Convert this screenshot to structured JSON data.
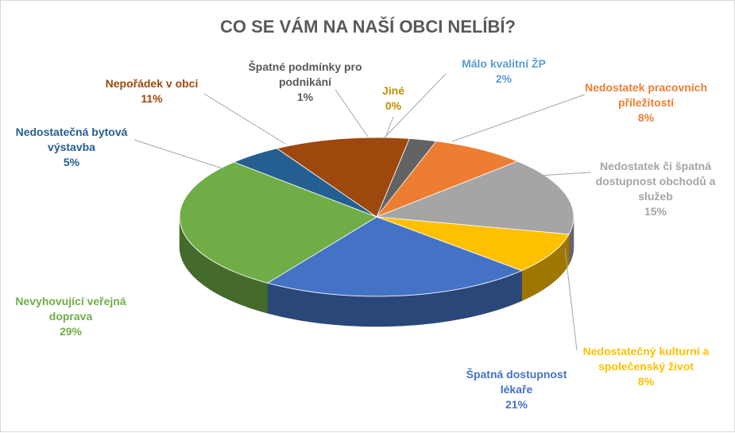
{
  "chart_data": {
    "type": "pie",
    "title": "CO SE VÁM NA NAŠÍ OBCI NELÍBÍ?",
    "slices": [
      {
        "label_lines": [
          "Jiné"
        ],
        "pct_label": "0%",
        "value": 0,
        "color": "#bf9000"
      },
      {
        "label_lines": [
          "Málo kvalitní ŽP"
        ],
        "pct_label": "2%",
        "value": 2,
        "color": "#5b9bd5"
      },
      {
        "label_lines": [
          "Nedostatek pracovních",
          "příležitostí"
        ],
        "pct_label": "8%",
        "value": 8,
        "color": "#ed7d31"
      },
      {
        "label_lines": [
          "Nedostatek či špatná",
          "dostupnost obchodů a",
          "služeb"
        ],
        "pct_label": "15%",
        "value": 15,
        "color": "#a5a5a5"
      },
      {
        "label_lines": [
          "Nedostatečný kulturní a",
          "společenský život"
        ],
        "pct_label": "8%",
        "value": 8,
        "color": "#ffc000"
      },
      {
        "label_lines": [
          "Špatná dostupnost",
          "lékaře"
        ],
        "pct_label": "21%",
        "value": 21,
        "color": "#4472c4"
      },
      {
        "label_lines": [
          "Nevyhovující veřejná",
          "doprava"
        ],
        "pct_label": "29%",
        "value": 29,
        "color": "#70ad47"
      },
      {
        "label_lines": [
          "Nedostatečná bytová",
          "výstavba"
        ],
        "pct_label": "5%",
        "value": 5,
        "color": "#255e91"
      },
      {
        "label_lines": [
          "Nepořádek v obci"
        ],
        "pct_label": "11%",
        "value": 11,
        "color": "#9e480e"
      },
      {
        "label_lines": [
          "Špatné podmínky pro",
          "podnikání"
        ],
        "pct_label": "1%",
        "value": 1,
        "color": "#636363"
      }
    ],
    "label_colors": [
      "#bf9000",
      "#5b9bd5",
      "#ed7d31",
      "#a5a5a5",
      "#ffc000",
      "#4472c4",
      "#70ad47",
      "#255e91",
      "#9e480e",
      "#595959"
    ],
    "legend": "none",
    "data_labels": "outside with leader lines"
  }
}
